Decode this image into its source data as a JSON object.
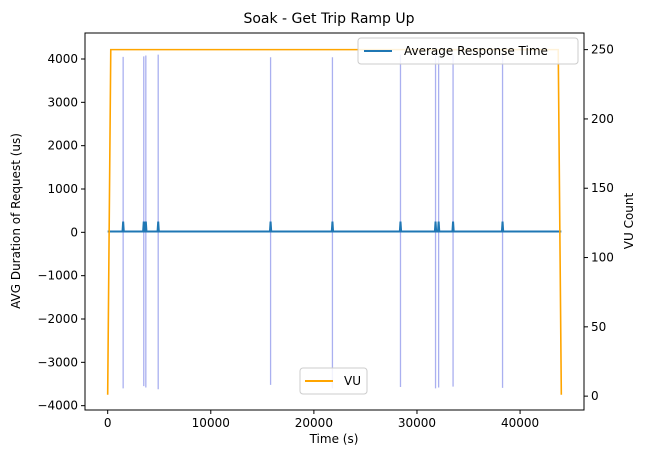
{
  "chart_data": {
    "type": "line",
    "title": "Soak - Get Trip Ramp Up",
    "xlabel": "Time (s)",
    "ylabel_left": "AVG Duration of Request (us)",
    "ylabel_right": "VU Count",
    "xlim": [
      -2200,
      46200
    ],
    "ylim_left": [
      -4100,
      4600
    ],
    "ylim_right": [
      -10,
      262
    ],
    "x_ticks": [
      0,
      10000,
      20000,
      30000,
      40000
    ],
    "y_ticks_left": [
      -4000,
      -3000,
      -2000,
      -1000,
      0,
      1000,
      2000,
      3000,
      4000
    ],
    "y_ticks_right": [
      0,
      50,
      100,
      150,
      200,
      250
    ],
    "grid": false,
    "series": [
      {
        "name": "Average Response Time",
        "axis": "left",
        "color": "#1f77b4",
        "baseline": 20,
        "x_range": [
          0,
          44000
        ],
        "spikes": [
          {
            "x": 1500,
            "peak": 250
          },
          {
            "x": 3500,
            "peak": 250
          },
          {
            "x": 3700,
            "peak": 250
          },
          {
            "x": 4900,
            "peak": 250
          },
          {
            "x": 15800,
            "peak": 250
          },
          {
            "x": 21800,
            "peak": 250
          },
          {
            "x": 28400,
            "peak": 250
          },
          {
            "x": 31800,
            "peak": 250
          },
          {
            "x": 32100,
            "peak": 250
          },
          {
            "x": 33500,
            "peak": 250
          },
          {
            "x": 38300,
            "peak": 250
          }
        ]
      },
      {
        "name": "",
        "axis": "left",
        "color": "#aab0f0",
        "x": [
          1500,
          3500,
          3700,
          4900,
          15800,
          21800,
          28400,
          31800,
          32100,
          33500,
          38300
        ],
        "y_min": [
          -3600,
          -3550,
          -3580,
          -3620,
          -3520,
          -3600,
          -3570,
          -3600,
          -3580,
          -3560,
          -3590
        ],
        "y_max": [
          4050,
          4060,
          4080,
          4100,
          4040,
          4040,
          4100,
          4100,
          4060,
          4100,
          4100
        ]
      },
      {
        "name": "VU",
        "axis": "right",
        "color": "#ffa500",
        "x": [
          0,
          300,
          43700,
          44000
        ],
        "values": [
          1,
          250,
          250,
          1
        ]
      }
    ],
    "legends": [
      {
        "entries": [
          "Average Response Time"
        ],
        "location": "upper right"
      },
      {
        "entries": [
          "VU"
        ],
        "location": "lower center"
      }
    ]
  }
}
